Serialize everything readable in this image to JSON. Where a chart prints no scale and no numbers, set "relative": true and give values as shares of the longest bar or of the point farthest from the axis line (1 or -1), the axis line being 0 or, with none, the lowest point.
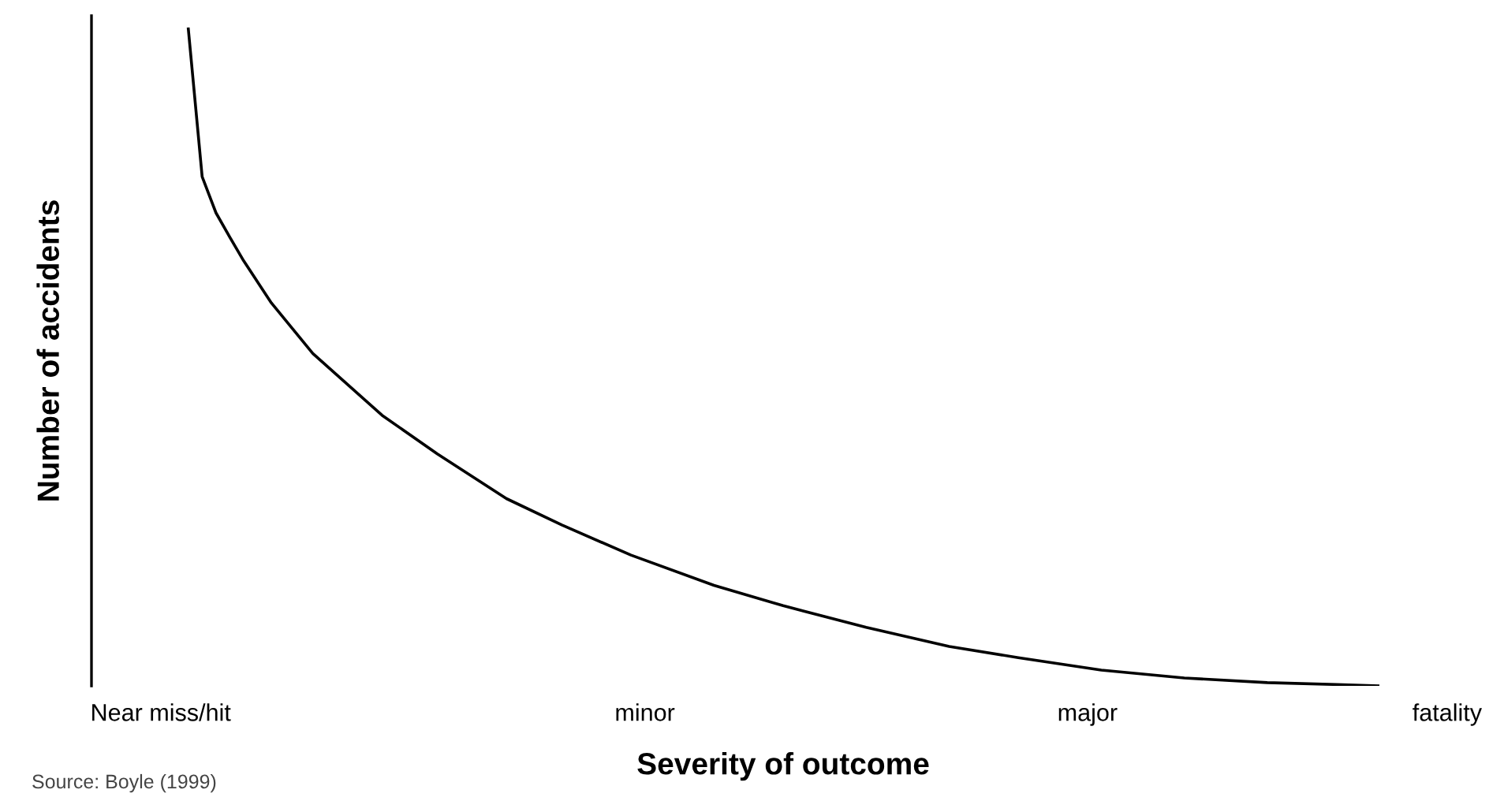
{
  "chart_data": {
    "type": "line",
    "relative": true,
    "xlabel": "Severity of outcome",
    "ylabel": "Number of accidents",
    "annotations": [
      "Source: Boyle (1999)"
    ],
    "categories": [
      null,
      null,
      null,
      null,
      null,
      "Near miss/hit",
      null,
      null,
      null,
      null,
      null,
      null,
      null,
      null,
      null,
      null,
      null,
      null,
      null,
      null,
      null,
      null,
      null,
      null,
      null,
      null,
      null,
      null,
      null,
      null,
      null,
      null,
      null,
      null,
      null,
      null,
      null,
      null,
      null,
      null,
      "minor",
      null,
      null,
      null,
      null,
      null,
      null,
      null,
      null,
      null,
      null,
      null,
      null,
      null,
      null,
      null,
      null,
      null,
      null,
      null,
      null,
      null,
      null,
      null,
      null,
      null,
      null,
      null,
      null,
      null,
      null,
      null,
      "major",
      null,
      null,
      null,
      null,
      null,
      null,
      null,
      null,
      null,
      null,
      null,
      null,
      null,
      null,
      null,
      null,
      null,
      null,
      null,
      null,
      null,
      null,
      null,
      null,
      null,
      "fatality",
      null,
      null
    ],
    "series": [
      {
        "color": "#000000",
        "values": [
          null,
          null,
          null,
          null,
          null,
          null,
          null,
          1.0,
          0.775,
          0.72,
          0.683,
          0.647,
          null,
          0.583,
          null,
          null,
          0.506,
          null,
          null,
          null,
          null,
          0.412,
          null,
          null,
          null,
          0.353,
          null,
          null,
          null,
          null,
          0.285,
          null,
          null,
          null,
          0.245,
          null,
          null,
          null,
          null,
          0.199,
          null,
          null,
          null,
          null,
          null,
          0.153,
          null,
          null,
          null,
          null,
          0.122,
          null,
          null,
          null,
          null,
          null,
          0.089,
          null,
          null,
          null,
          null,
          null,
          0.06,
          null,
          null,
          null,
          null,
          0.043,
          null,
          null,
          null,
          null,
          null,
          0.024,
          null,
          null,
          null,
          null,
          null,
          0.012,
          null,
          null,
          null,
          null,
          null,
          0.005,
          null,
          null,
          null,
          null,
          0.002,
          null,
          null,
          0,
          null,
          null,
          null,
          null,
          null,
          null,
          null
        ]
      }
    ],
    "grid": false,
    "legend": false
  }
}
